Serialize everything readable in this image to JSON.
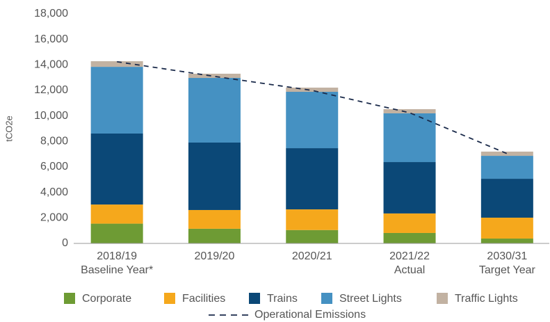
{
  "chart_data": {
    "type": "stacked_bar",
    "y_axis_label": "tCO2e",
    "categories": [
      [
        "2018/19",
        "Baseline Year*"
      ],
      [
        "2019/20"
      ],
      [
        "2020/21"
      ],
      [
        "2021/22",
        "Actual"
      ],
      [
        "2030/31",
        "Target Year"
      ]
    ],
    "series": [
      {
        "name": "Corporate",
        "color": "#6e9b34",
        "values": [
          1550,
          1150,
          1050,
          820,
          380
        ]
      },
      {
        "name": "Facilities",
        "color": "#f5a81c",
        "values": [
          1500,
          1470,
          1620,
          1530,
          1640
        ]
      },
      {
        "name": "Trains",
        "color": "#0b4877",
        "values": [
          5570,
          5290,
          4800,
          4030,
          3050
        ]
      },
      {
        "name": "Street Lights",
        "color": "#4591c2",
        "values": [
          5230,
          5070,
          4420,
          3820,
          1800
        ]
      },
      {
        "name": "Traffic Lights",
        "color": "#c2b2a2",
        "values": [
          440,
          330,
          330,
          330,
          330
        ]
      }
    ],
    "line": {
      "name": "Operational Emissions",
      "color": "#1a2a4a",
      "dashed": true,
      "values": [
        14250,
        13100,
        12000,
        10250,
        7040
      ]
    },
    "ylim": [
      0,
      18000
    ],
    "yticks": [
      {
        "value": 0,
        "label": "0"
      },
      {
        "value": 2000,
        "label": "2,000"
      },
      {
        "value": 4000,
        "label": "4,000"
      },
      {
        "value": 6000,
        "label": "6,000"
      },
      {
        "value": 8000,
        "label": "8,000"
      },
      {
        "value": 10000,
        "label": "10,000"
      },
      {
        "value": 12000,
        "label": "12,000"
      },
      {
        "value": 14000,
        "label": "14,000"
      },
      {
        "value": 16000,
        "label": "16,000"
      },
      {
        "value": 18000,
        "label": "18,000"
      }
    ],
    "grid": false
  }
}
